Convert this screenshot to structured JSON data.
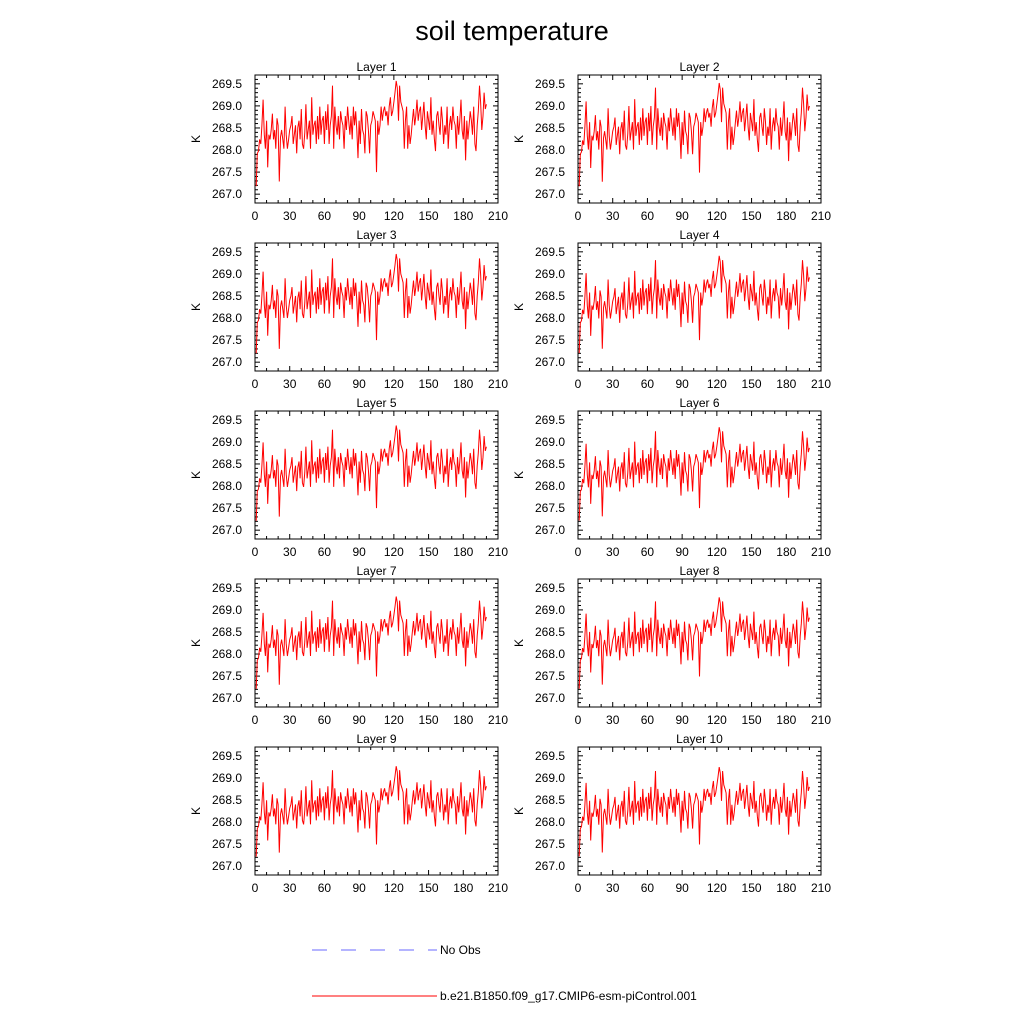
{
  "chart_data": {
    "type": "line",
    "title": "soil temperature",
    "ylabel": "K",
    "xlim": [
      0,
      210
    ],
    "ylim": [
      266.8,
      269.7
    ],
    "x_ticks": [
      0,
      30,
      60,
      90,
      120,
      150,
      180,
      210
    ],
    "y_ticks": [
      267.0,
      267.5,
      268.0,
      268.5,
      269.0,
      269.5
    ],
    "y_tick_labels": [
      "267.0",
      "267.5",
      "268.0",
      "268.5",
      "269.0",
      "269.5"
    ],
    "line_color": "#ff0000",
    "obs_color": "#6a6aff",
    "legend": [
      {
        "label": "No Obs",
        "style": "dashed",
        "color": "#6a6aff"
      },
      {
        "label": "b.e21.B1850.f09_g17.CMIP6-esm-piControl.001",
        "style": "solid",
        "color": "#ff0000"
      }
    ],
    "panels": [
      {
        "title": "Layer 1",
        "offset": 0.06,
        "amp": 1.06
      },
      {
        "title": "Layer 2",
        "offset": 0.03,
        "amp": 1.04
      },
      {
        "title": "Layer 3",
        "offset": 0.0,
        "amp": 1.0
      },
      {
        "title": "Layer 4",
        "offset": -0.02,
        "amp": 0.98
      },
      {
        "title": "Layer 5",
        "offset": -0.04,
        "amp": 0.96
      },
      {
        "title": "Layer 6",
        "offset": -0.06,
        "amp": 0.94
      },
      {
        "title": "Layer 7",
        "offset": -0.08,
        "amp": 0.93
      },
      {
        "title": "Layer 8",
        "offset": -0.09,
        "amp": 0.92
      },
      {
        "title": "Layer 9",
        "offset": -0.1,
        "amp": 0.91
      },
      {
        "title": "Layer 10",
        "offset": -0.11,
        "amp": 0.9
      }
    ],
    "base_series": {
      "x_start": 1,
      "x_step": 1,
      "values": [
        267.2,
        267.9,
        267.95,
        268.2,
        268.1,
        268.5,
        269.05,
        268.3,
        268.0,
        268.6,
        267.6,
        268.3,
        268.2,
        268.4,
        268.75,
        268.2,
        268.4,
        268.0,
        268.65,
        268.5,
        267.3,
        268.25,
        268.4,
        268.2,
        268.0,
        268.9,
        268.3,
        268.0,
        268.2,
        268.4,
        268.5,
        268.7,
        268.1,
        268.3,
        268.5,
        267.9,
        268.45,
        268.6,
        268.2,
        268.85,
        268.1,
        268.0,
        268.35,
        268.95,
        268.2,
        268.4,
        268.6,
        268.0,
        269.1,
        268.3,
        268.5,
        268.6,
        268.1,
        268.7,
        268.2,
        268.9,
        268.3,
        268.6,
        268.7,
        268.1,
        268.8,
        268.4,
        268.95,
        268.1,
        268.5,
        268.7,
        269.35,
        268.0,
        268.9,
        268.5,
        268.3,
        268.7,
        268.2,
        268.8,
        268.6,
        268.5,
        268.0,
        268.7,
        268.4,
        268.9,
        268.6,
        268.3,
        268.7,
        268.2,
        268.9,
        268.5,
        268.8,
        268.4,
        267.8,
        268.6,
        268.1,
        268.85,
        268.4,
        268.3,
        267.9,
        268.8,
        268.7,
        268.4,
        267.9,
        268.5,
        268.6,
        268.8,
        268.7,
        268.6,
        267.5,
        268.6,
        268.3,
        268.5,
        268.9,
        268.6,
        268.8,
        268.9,
        268.7,
        268.8,
        268.5,
        268.9,
        269.1,
        268.7,
        268.8,
        269.0,
        269.2,
        269.45,
        269.3,
        268.6,
        269.35,
        269.0,
        268.9,
        268.8,
        268.0,
        268.6,
        268.9,
        268.0,
        268.5,
        268.1,
        268.3,
        268.6,
        268.85,
        268.5,
        268.7,
        269.05,
        268.6,
        268.8,
        268.9,
        268.4,
        268.7,
        269.0,
        268.5,
        268.2,
        268.8,
        268.6,
        268.4,
        269.1,
        268.3,
        268.6,
        268.2,
        267.95,
        268.7,
        268.8,
        268.5,
        268.3,
        268.9,
        268.6,
        268.1,
        268.5,
        268.3,
        268.9,
        268.0,
        268.5,
        268.7,
        268.4,
        268.9,
        268.6,
        268.5,
        268.0,
        268.7,
        268.3,
        268.6,
        269.05,
        268.4,
        268.2,
        268.7,
        267.75,
        268.6,
        268.2,
        268.5,
        268.8,
        268.6,
        268.3,
        268.9,
        268.1,
        267.95,
        268.5,
        268.8,
        269.35,
        269.0,
        268.4,
        268.7,
        269.2,
        268.85,
        268.95
      ]
    }
  }
}
